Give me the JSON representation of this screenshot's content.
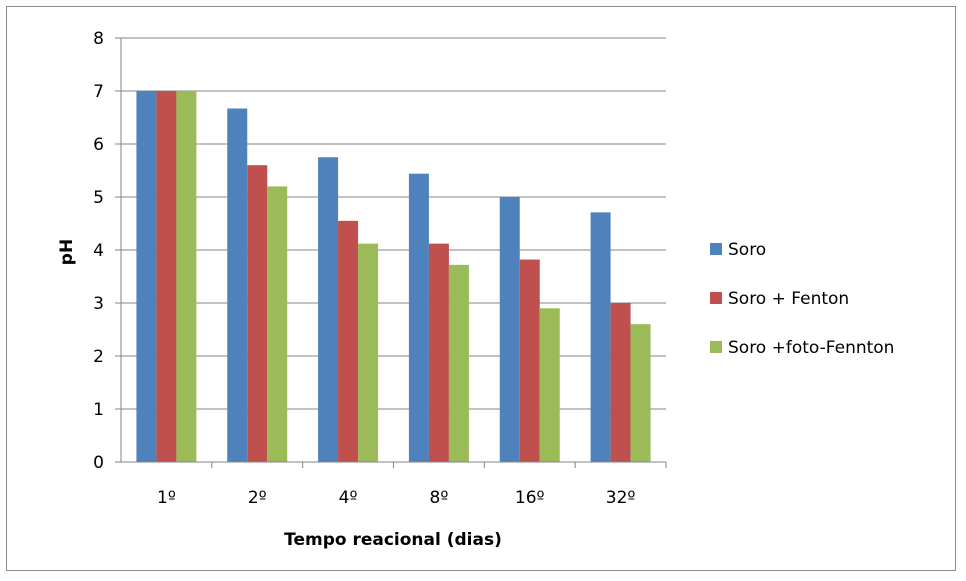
{
  "chart_data": {
    "type": "bar",
    "title": "",
    "xlabel": "Tempo reacional (dias)",
    "ylabel": "pH",
    "ylim": [
      0,
      8
    ],
    "yticks": [
      0,
      1,
      2,
      3,
      4,
      5,
      6,
      7,
      8
    ],
    "grid": true,
    "legend_position": "right",
    "categories": [
      "1º",
      "2º",
      "4º",
      "8º",
      "16º",
      "32º"
    ],
    "series": [
      {
        "name": "Soro",
        "color": "#4f81bd",
        "values": [
          7.0,
          6.67,
          5.75,
          5.44,
          5.0,
          4.71
        ]
      },
      {
        "name": "Soro + Fenton",
        "color": "#c0504d",
        "values": [
          7.0,
          5.6,
          4.55,
          4.12,
          3.82,
          3.0
        ]
      },
      {
        "name": "Soro +foto-Fennton",
        "color": "#9bbb59",
        "values": [
          7.0,
          5.2,
          4.12,
          3.72,
          2.9,
          2.6
        ]
      }
    ]
  }
}
